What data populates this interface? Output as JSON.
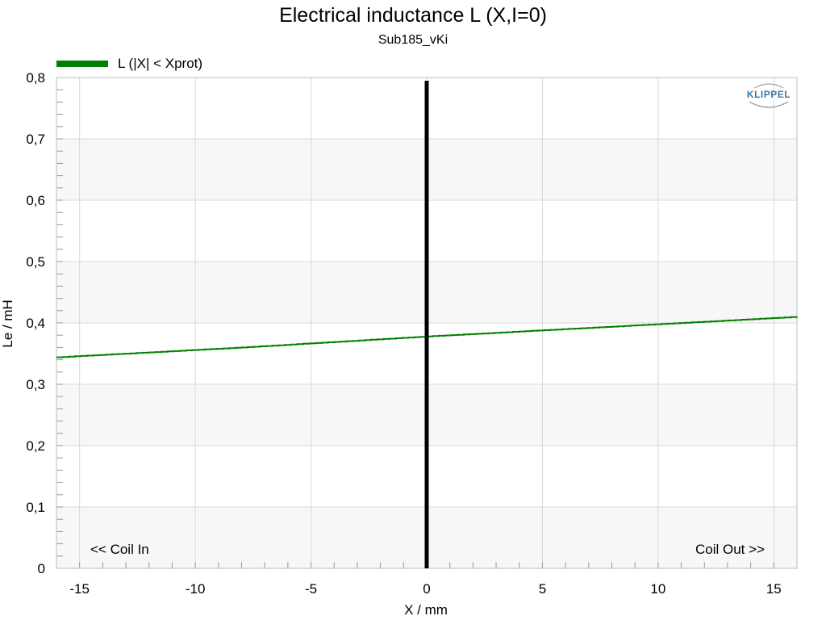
{
  "chart_data": {
    "type": "line",
    "title": "Electrical inductance L (X,I=0)",
    "subtitle": "Sub185_vKi",
    "xlabel": "X / mm",
    "ylabel": "Le / mH",
    "xlim": [
      -16,
      16
    ],
    "ylim": [
      0,
      0.8
    ],
    "x_ticks": [
      -15,
      -10,
      -5,
      0,
      5,
      10,
      15
    ],
    "x_tick_labels": [
      "-15",
      "-10",
      "-5",
      "0",
      "5",
      "10",
      "15"
    ],
    "y_ticks": [
      0,
      0.1,
      0.2,
      0.3,
      0.4,
      0.5,
      0.6,
      0.7,
      0.8
    ],
    "y_tick_labels": [
      "0",
      "0,1",
      "0,2",
      "0,3",
      "0,4",
      "0,5",
      "0,6",
      "0,7",
      "0,8"
    ],
    "grid": true,
    "legend_position": "top-left",
    "series": [
      {
        "name": "L (|X| < Xprot)",
        "color": "#008000",
        "x": [
          -16,
          -12,
          -8,
          -4,
          0,
          4,
          8,
          12,
          16
        ],
        "y": [
          0.344,
          0.352,
          0.36,
          0.369,
          0.378,
          0.386,
          0.394,
          0.402,
          0.41
        ]
      }
    ],
    "marker_line": {
      "x": 0,
      "color": "#000000"
    },
    "annotations": {
      "left": "<< Coil In",
      "right": "Coil Out >>"
    },
    "logo": "KLIPPEL",
    "colors": {
      "band": "#f7f7f7",
      "grid": "#d8d8d8",
      "frame": "#bdbdbd",
      "logo": "#3a78a8"
    }
  }
}
